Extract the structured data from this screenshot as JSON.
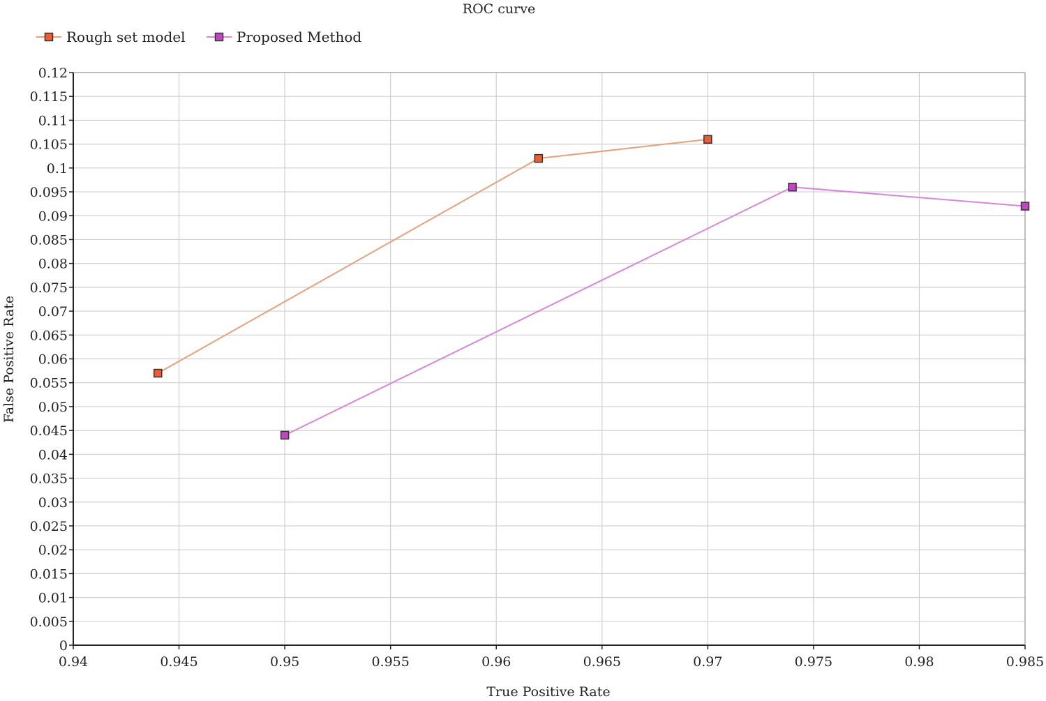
{
  "chart_data": {
    "type": "line",
    "title": "ROC curve",
    "xlabel": "True Positive Rate",
    "ylabel": "False Positive Rate",
    "xlim": [
      0.94,
      0.985
    ],
    "ylim": [
      0,
      0.12
    ],
    "x_ticks": [
      "0.94",
      "0.945",
      "0.95",
      "0.955",
      "0.96",
      "0.965",
      "0.97",
      "0.975",
      "0.98",
      "0.985"
    ],
    "y_ticks": [
      "0",
      "0.005",
      "0.01",
      "0.015",
      "0.02",
      "0.025",
      "0.03",
      "0.035",
      "0.04",
      "0.045",
      "0.05",
      "0.055",
      "0.06",
      "0.065",
      "0.07",
      "0.075",
      "0.08",
      "0.085",
      "0.09",
      "0.095",
      "0.1",
      "0.105",
      "0.11",
      "0.115",
      "0.12"
    ],
    "grid": true,
    "legend_position": "top-left",
    "series": [
      {
        "name": "Rough set model",
        "line_color": "#e8a07c",
        "marker_color": "#f25c2e",
        "points": [
          {
            "x": 0.944,
            "y": 0.057
          },
          {
            "x": 0.962,
            "y": 0.102
          },
          {
            "x": 0.97,
            "y": 0.106
          }
        ]
      },
      {
        "name": "Proposed Method",
        "line_color": "#d985d9",
        "marker_color": "#c445c4",
        "points": [
          {
            "x": 0.95,
            "y": 0.044
          },
          {
            "x": 0.974,
            "y": 0.096
          },
          {
            "x": 0.985,
            "y": 0.092
          }
        ]
      }
    ]
  }
}
